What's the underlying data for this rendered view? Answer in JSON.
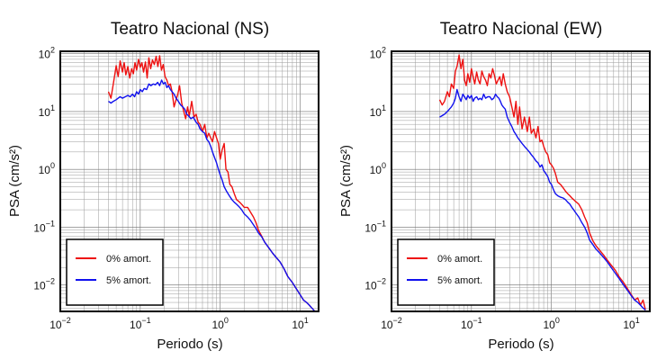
{
  "colors": {
    "series_0": "#ee1111",
    "series_5": "#1111ee",
    "grid": "#808080"
  },
  "chart_data": [
    {
      "type": "line",
      "title": "Teatro Nacional (NS)",
      "xlabel": "Periodo (s)",
      "ylabel": "PSA (cm/s²)",
      "xscale": "log",
      "yscale": "log",
      "xlim": [
        0.01,
        17
      ],
      "ylim": [
        0.0035,
        110
      ],
      "xticks": [
        {
          "base": "10",
          "exp": "−2"
        },
        {
          "base": "10",
          "exp": "−1"
        },
        {
          "base": "10",
          "exp": "0"
        },
        {
          "base": "10",
          "exp": "1"
        }
      ],
      "yticks": [
        {
          "base": "10",
          "exp": "−2"
        },
        {
          "base": "10",
          "exp": "−1"
        },
        {
          "base": "10",
          "exp": "0"
        },
        {
          "base": "10",
          "exp": "1"
        },
        {
          "base": "10",
          "exp": "2"
        }
      ],
      "grid": true,
      "legend_position": "bottom-left",
      "series": [
        {
          "name": "0% amort.",
          "color": "#ee1111",
          "x": [
            0.04,
            0.043,
            0.046,
            0.05,
            0.053,
            0.056,
            0.06,
            0.063,
            0.066,
            0.07,
            0.074,
            0.078,
            0.082,
            0.086,
            0.09,
            0.095,
            0.1,
            0.105,
            0.11,
            0.116,
            0.122,
            0.128,
            0.135,
            0.142,
            0.15,
            0.158,
            0.166,
            0.175,
            0.184,
            0.194,
            0.204,
            0.215,
            0.226,
            0.238,
            0.25,
            0.265,
            0.28,
            0.295,
            0.31,
            0.33,
            0.35,
            0.37,
            0.39,
            0.41,
            0.44,
            0.47,
            0.5,
            0.53,
            0.56,
            0.6,
            0.64,
            0.68,
            0.72,
            0.76,
            0.8,
            0.85,
            0.9,
            0.95,
            1.0,
            1.06,
            1.12,
            1.18,
            1.25,
            1.32,
            1.4,
            1.5,
            1.6,
            1.7,
            1.8,
            1.9,
            2.0,
            2.2,
            2.4,
            2.6,
            2.8,
            3.0,
            3.3,
            3.6,
            4.0,
            4.5,
            5.0,
            5.6,
            6.3,
            7.0,
            8.0,
            9.0,
            10.0,
            11.0,
            12.0,
            13.0,
            14.0,
            15.0
          ],
          "y": [
            22,
            17,
            30,
            62,
            40,
            75,
            48,
            70,
            43,
            60,
            38,
            55,
            45,
            70,
            52,
            80,
            58,
            70,
            48,
            72,
            38,
            85,
            55,
            78,
            65,
            90,
            60,
            92,
            52,
            65,
            40,
            35,
            28,
            30,
            22,
            12,
            16,
            20,
            28,
            14,
            10,
            7.5,
            12,
            8.5,
            15,
            8,
            9,
            6.5,
            6,
            4.5,
            6,
            3.5,
            4.2,
            3.5,
            3.0,
            4.5,
            3.5,
            2.8,
            1.5,
            2.2,
            2.8,
            1.0,
            0.9,
            0.55,
            0.5,
            0.38,
            0.3,
            0.28,
            0.26,
            0.24,
            0.22,
            0.22,
            0.18,
            0.15,
            0.12,
            0.09,
            0.07,
            0.055,
            0.045,
            0.036,
            0.03,
            0.025,
            0.019,
            0.014,
            0.011,
            0.0085,
            0.0068,
            0.0055,
            0.005,
            0.0045,
            0.004,
            0.0036
          ]
        },
        {
          "name": "5% amort.",
          "color": "#1111ee",
          "x": [
            0.04,
            0.043,
            0.046,
            0.05,
            0.053,
            0.056,
            0.06,
            0.065,
            0.07,
            0.075,
            0.08,
            0.085,
            0.09,
            0.095,
            0.1,
            0.106,
            0.112,
            0.12,
            0.128,
            0.136,
            0.145,
            0.155,
            0.165,
            0.175,
            0.185,
            0.195,
            0.205,
            0.215,
            0.226,
            0.238,
            0.25,
            0.265,
            0.28,
            0.3,
            0.32,
            0.34,
            0.36,
            0.38,
            0.4,
            0.43,
            0.46,
            0.5,
            0.53,
            0.56,
            0.6,
            0.64,
            0.68,
            0.72,
            0.76,
            0.8,
            0.85,
            0.9,
            0.95,
            1.0,
            1.06,
            1.12,
            1.2,
            1.3,
            1.4,
            1.5,
            1.6,
            1.7,
            1.8,
            1.9,
            2.0,
            2.2,
            2.4,
            2.6,
            2.8,
            3.0,
            3.3,
            3.6,
            4.0,
            4.5,
            5.0,
            5.6,
            6.3,
            7.0,
            8.0,
            9.0,
            10.0,
            11.0,
            12.0,
            13.0,
            14.0,
            15.0
          ],
          "y": [
            15,
            14,
            15,
            16,
            17,
            18,
            17,
            18,
            19,
            18,
            20,
            18,
            22,
            20,
            24,
            22,
            25,
            24,
            30,
            28,
            30,
            29,
            32,
            28,
            35,
            30,
            32,
            26,
            28,
            24,
            22,
            20,
            17,
            15,
            13,
            12,
            11,
            9,
            8.5,
            7.5,
            8,
            6.5,
            6,
            5,
            4.5,
            4.2,
            3.3,
            3.0,
            2.5,
            2.0,
            1.6,
            1.3,
            1.0,
            0.8,
            0.65,
            0.5,
            0.42,
            0.35,
            0.3,
            0.27,
            0.25,
            0.23,
            0.21,
            0.19,
            0.17,
            0.15,
            0.13,
            0.11,
            0.095,
            0.08,
            0.068,
            0.055,
            0.045,
            0.036,
            0.03,
            0.025,
            0.019,
            0.014,
            0.011,
            0.0085,
            0.0068,
            0.0055,
            0.005,
            0.0045,
            0.004,
            0.0036
          ]
        }
      ]
    },
    {
      "type": "line",
      "title": "Teatro Nacional (EW)",
      "xlabel": "Periodo (s)",
      "ylabel": "PSA (cm/s²)",
      "xscale": "log",
      "yscale": "log",
      "xlim": [
        0.01,
        17
      ],
      "ylim": [
        0.0035,
        110
      ],
      "xticks": [
        {
          "base": "10",
          "exp": "−2"
        },
        {
          "base": "10",
          "exp": "−1"
        },
        {
          "base": "10",
          "exp": "0"
        },
        {
          "base": "10",
          "exp": "1"
        }
      ],
      "yticks": [
        {
          "base": "10",
          "exp": "−2"
        },
        {
          "base": "10",
          "exp": "−1"
        },
        {
          "base": "10",
          "exp": "0"
        },
        {
          "base": "10",
          "exp": "1"
        },
        {
          "base": "10",
          "exp": "2"
        }
      ],
      "grid": true,
      "legend_position": "bottom-left",
      "series": [
        {
          "name": "0% amort.",
          "color": "#ee1111",
          "x": [
            0.04,
            0.043,
            0.046,
            0.05,
            0.053,
            0.056,
            0.06,
            0.063,
            0.066,
            0.07,
            0.074,
            0.078,
            0.082,
            0.086,
            0.09,
            0.095,
            0.1,
            0.105,
            0.11,
            0.116,
            0.122,
            0.128,
            0.135,
            0.142,
            0.15,
            0.158,
            0.166,
            0.175,
            0.184,
            0.194,
            0.204,
            0.215,
            0.226,
            0.238,
            0.25,
            0.265,
            0.28,
            0.3,
            0.32,
            0.34,
            0.36,
            0.38,
            0.4,
            0.43,
            0.46,
            0.5,
            0.53,
            0.56,
            0.6,
            0.64,
            0.68,
            0.72,
            0.76,
            0.8,
            0.85,
            0.9,
            0.95,
            1.0,
            1.06,
            1.12,
            1.2,
            1.3,
            1.4,
            1.5,
            1.6,
            1.7,
            1.8,
            1.9,
            2.0,
            2.2,
            2.4,
            2.6,
            2.8,
            3.0,
            3.3,
            3.6,
            4.0,
            4.5,
            5.0,
            5.6,
            6.3,
            7.0,
            8.0,
            9.0,
            10.0,
            11.0,
            12.0,
            13.0,
            14.0,
            15.0
          ],
          "y": [
            16,
            13,
            15,
            22,
            18,
            30,
            25,
            50,
            60,
            95,
            55,
            80,
            35,
            28,
            45,
            32,
            55,
            40,
            30,
            48,
            35,
            30,
            50,
            40,
            35,
            28,
            45,
            38,
            55,
            42,
            30,
            35,
            40,
            28,
            45,
            30,
            22,
            18,
            12,
            8,
            15,
            6,
            12,
            5,
            8,
            4.5,
            8,
            4.2,
            5,
            3.5,
            5.5,
            3.0,
            3.2,
            2.5,
            2.0,
            1.8,
            1.3,
            1.2,
            1.05,
            0.85,
            0.6,
            0.55,
            0.48,
            0.42,
            0.38,
            0.35,
            0.32,
            0.3,
            0.28,
            0.25,
            0.2,
            0.15,
            0.12,
            0.08,
            0.058,
            0.048,
            0.04,
            0.033,
            0.027,
            0.022,
            0.018,
            0.014,
            0.011,
            0.0085,
            0.0068,
            0.0055,
            0.006,
            0.0045,
            0.0055,
            0.0037
          ]
        },
        {
          "name": "5% amort.",
          "color": "#1111ee",
          "x": [
            0.04,
            0.043,
            0.046,
            0.05,
            0.053,
            0.056,
            0.06,
            0.063,
            0.066,
            0.07,
            0.074,
            0.078,
            0.082,
            0.086,
            0.09,
            0.095,
            0.1,
            0.105,
            0.11,
            0.116,
            0.122,
            0.128,
            0.135,
            0.142,
            0.15,
            0.16,
            0.17,
            0.18,
            0.19,
            0.2,
            0.21,
            0.22,
            0.23,
            0.24,
            0.25,
            0.265,
            0.28,
            0.3,
            0.32,
            0.34,
            0.36,
            0.38,
            0.4,
            0.43,
            0.46,
            0.5,
            0.53,
            0.56,
            0.6,
            0.64,
            0.68,
            0.72,
            0.76,
            0.8,
            0.85,
            0.9,
            0.95,
            1.0,
            1.06,
            1.12,
            1.2,
            1.3,
            1.4,
            1.5,
            1.6,
            1.7,
            1.8,
            1.9,
            2.0,
            2.2,
            2.4,
            2.6,
            2.8,
            3.0,
            3.3,
            3.6,
            4.0,
            4.5,
            5.0,
            5.6,
            6.3,
            7.0,
            8.0,
            9.0,
            10.0,
            11.0,
            12.0,
            13.0,
            14.0,
            15.0
          ],
          "y": [
            8,
            8.5,
            9,
            10,
            11,
            12,
            14,
            17,
            24,
            18,
            15,
            20,
            18,
            16,
            19,
            17,
            19,
            15,
            17,
            18,
            16,
            17,
            16,
            20,
            17,
            18,
            18,
            16,
            17,
            20,
            18,
            17,
            15,
            13,
            12,
            11,
            8,
            6.5,
            5.5,
            4.5,
            4,
            3.5,
            3.2,
            2.8,
            2.5,
            2.2,
            2.0,
            1.8,
            1.6,
            1.4,
            1.3,
            1.1,
            1.2,
            0.95,
            0.85,
            0.75,
            0.6,
            0.55,
            0.45,
            0.38,
            0.35,
            0.33,
            0.32,
            0.3,
            0.27,
            0.25,
            0.22,
            0.2,
            0.18,
            0.15,
            0.12,
            0.1,
            0.08,
            0.06,
            0.05,
            0.042,
            0.036,
            0.03,
            0.025,
            0.02,
            0.016,
            0.013,
            0.01,
            0.008,
            0.0065,
            0.0055,
            0.005,
            0.0045,
            0.004,
            0.0037
          ]
        }
      ]
    }
  ]
}
